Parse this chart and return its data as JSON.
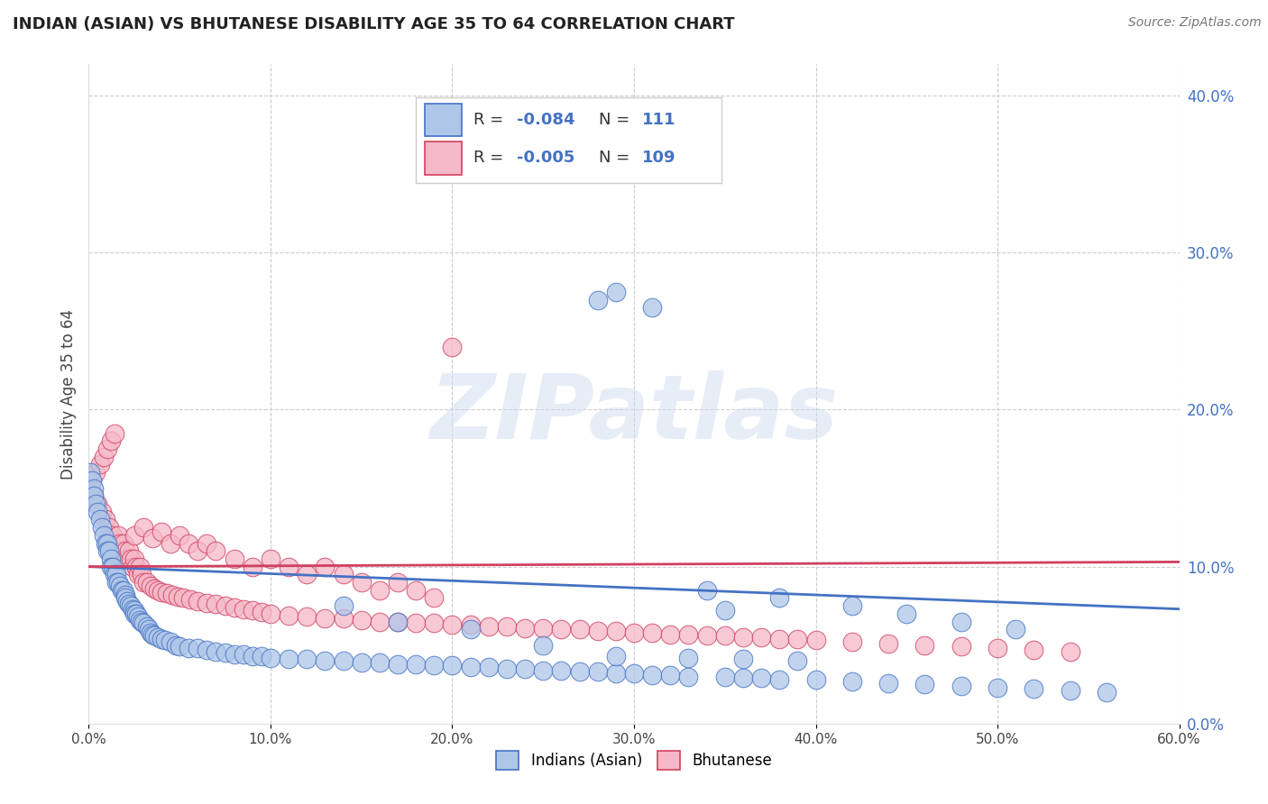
{
  "title": "INDIAN (ASIAN) VS BHUTANESE DISABILITY AGE 35 TO 64 CORRELATION CHART",
  "source": "Source: ZipAtlas.com",
  "ylabel": "Disability Age 35 to 64",
  "legend_label1": "Indians (Asian)",
  "legend_label2": "Bhutanese",
  "r1": "-0.084",
  "n1": "111",
  "r2": "-0.005",
  "n2": "109",
  "xlim": [
    0.0,
    0.6
  ],
  "ylim": [
    0.0,
    0.42
  ],
  "yticks": [
    0.0,
    0.1,
    0.2,
    0.3,
    0.4
  ],
  "xticks": [
    0.0,
    0.1,
    0.2,
    0.3,
    0.4,
    0.5,
    0.6
  ],
  "color_indian": "#aec6e8",
  "color_bhutanese": "#f5b8c8",
  "line_color_indian": "#4472c4",
  "line_color_bhutanese": "#d04060",
  "background_color": "#ffffff",
  "title_color": "#222222",
  "source_color": "#777777",
  "indian_x": [
    0.001,
    0.002,
    0.003,
    0.003,
    0.004,
    0.005,
    0.006,
    0.007,
    0.008,
    0.009,
    0.01,
    0.01,
    0.011,
    0.012,
    0.012,
    0.013,
    0.014,
    0.015,
    0.015,
    0.016,
    0.017,
    0.018,
    0.019,
    0.02,
    0.02,
    0.021,
    0.022,
    0.023,
    0.024,
    0.025,
    0.025,
    0.026,
    0.027,
    0.028,
    0.029,
    0.03,
    0.032,
    0.033,
    0.034,
    0.035,
    0.036,
    0.038,
    0.04,
    0.042,
    0.045,
    0.048,
    0.05,
    0.055,
    0.06,
    0.065,
    0.07,
    0.075,
    0.08,
    0.085,
    0.09,
    0.095,
    0.1,
    0.11,
    0.12,
    0.13,
    0.14,
    0.15,
    0.16,
    0.17,
    0.18,
    0.19,
    0.2,
    0.21,
    0.22,
    0.23,
    0.24,
    0.25,
    0.26,
    0.27,
    0.28,
    0.29,
    0.3,
    0.31,
    0.32,
    0.33,
    0.35,
    0.36,
    0.37,
    0.38,
    0.4,
    0.42,
    0.44,
    0.46,
    0.48,
    0.5,
    0.52,
    0.54,
    0.56,
    0.34,
    0.38,
    0.42,
    0.45,
    0.48,
    0.51,
    0.29,
    0.28,
    0.31,
    0.29,
    0.33,
    0.36,
    0.39,
    0.35,
    0.25,
    0.21,
    0.17,
    0.14
  ],
  "indian_y": [
    0.16,
    0.155,
    0.15,
    0.145,
    0.14,
    0.135,
    0.13,
    0.125,
    0.12,
    0.115,
    0.115,
    0.11,
    0.11,
    0.105,
    0.1,
    0.1,
    0.095,
    0.095,
    0.09,
    0.09,
    0.088,
    0.085,
    0.085,
    0.082,
    0.08,
    0.078,
    0.076,
    0.075,
    0.073,
    0.072,
    0.07,
    0.07,
    0.068,
    0.066,
    0.065,
    0.064,
    0.062,
    0.06,
    0.058,
    0.057,
    0.056,
    0.055,
    0.054,
    0.053,
    0.052,
    0.05,
    0.049,
    0.048,
    0.048,
    0.047,
    0.046,
    0.045,
    0.044,
    0.044,
    0.043,
    0.043,
    0.042,
    0.041,
    0.041,
    0.04,
    0.04,
    0.039,
    0.039,
    0.038,
    0.038,
    0.037,
    0.037,
    0.036,
    0.036,
    0.035,
    0.035,
    0.034,
    0.034,
    0.033,
    0.033,
    0.032,
    0.032,
    0.031,
    0.031,
    0.03,
    0.03,
    0.029,
    0.029,
    0.028,
    0.028,
    0.027,
    0.026,
    0.025,
    0.024,
    0.023,
    0.022,
    0.021,
    0.02,
    0.085,
    0.08,
    0.075,
    0.07,
    0.065,
    0.06,
    0.275,
    0.27,
    0.265,
    0.043,
    0.042,
    0.041,
    0.04,
    0.072,
    0.05,
    0.06,
    0.065,
    0.075
  ],
  "bhutanese_x": [
    0.001,
    0.002,
    0.003,
    0.004,
    0.005,
    0.006,
    0.007,
    0.008,
    0.009,
    0.01,
    0.011,
    0.012,
    0.013,
    0.014,
    0.015,
    0.016,
    0.017,
    0.018,
    0.019,
    0.02,
    0.021,
    0.022,
    0.023,
    0.024,
    0.025,
    0.026,
    0.027,
    0.028,
    0.029,
    0.03,
    0.032,
    0.034,
    0.036,
    0.038,
    0.04,
    0.043,
    0.046,
    0.049,
    0.052,
    0.056,
    0.06,
    0.065,
    0.07,
    0.075,
    0.08,
    0.085,
    0.09,
    0.095,
    0.1,
    0.11,
    0.12,
    0.13,
    0.14,
    0.15,
    0.16,
    0.17,
    0.18,
    0.19,
    0.2,
    0.21,
    0.22,
    0.23,
    0.24,
    0.25,
    0.26,
    0.27,
    0.28,
    0.29,
    0.3,
    0.31,
    0.32,
    0.33,
    0.34,
    0.35,
    0.36,
    0.37,
    0.38,
    0.39,
    0.4,
    0.42,
    0.44,
    0.46,
    0.48,
    0.5,
    0.52,
    0.54,
    0.025,
    0.03,
    0.035,
    0.04,
    0.045,
    0.05,
    0.055,
    0.06,
    0.065,
    0.07,
    0.08,
    0.09,
    0.1,
    0.11,
    0.12,
    0.13,
    0.14,
    0.15,
    0.16,
    0.17,
    0.18,
    0.19,
    0.2
  ],
  "bhutanese_y": [
    0.15,
    0.155,
    0.145,
    0.16,
    0.14,
    0.165,
    0.135,
    0.17,
    0.13,
    0.175,
    0.125,
    0.18,
    0.12,
    0.185,
    0.115,
    0.12,
    0.115,
    0.11,
    0.115,
    0.11,
    0.105,
    0.11,
    0.105,
    0.1,
    0.105,
    0.1,
    0.095,
    0.1,
    0.095,
    0.09,
    0.09,
    0.088,
    0.086,
    0.085,
    0.084,
    0.083,
    0.082,
    0.081,
    0.08,
    0.079,
    0.078,
    0.077,
    0.076,
    0.075,
    0.074,
    0.073,
    0.072,
    0.071,
    0.07,
    0.069,
    0.068,
    0.067,
    0.067,
    0.066,
    0.065,
    0.065,
    0.064,
    0.064,
    0.063,
    0.063,
    0.062,
    0.062,
    0.061,
    0.061,
    0.06,
    0.06,
    0.059,
    0.059,
    0.058,
    0.058,
    0.057,
    0.057,
    0.056,
    0.056,
    0.055,
    0.055,
    0.054,
    0.054,
    0.053,
    0.052,
    0.051,
    0.05,
    0.049,
    0.048,
    0.047,
    0.046,
    0.12,
    0.125,
    0.118,
    0.122,
    0.115,
    0.12,
    0.115,
    0.11,
    0.115,
    0.11,
    0.105,
    0.1,
    0.105,
    0.1,
    0.095,
    0.1,
    0.095,
    0.09,
    0.085,
    0.09,
    0.085,
    0.08,
    0.24
  ],
  "zipatlas_text": "ZIPatlas",
  "watermark_color": "#d0ddf0"
}
